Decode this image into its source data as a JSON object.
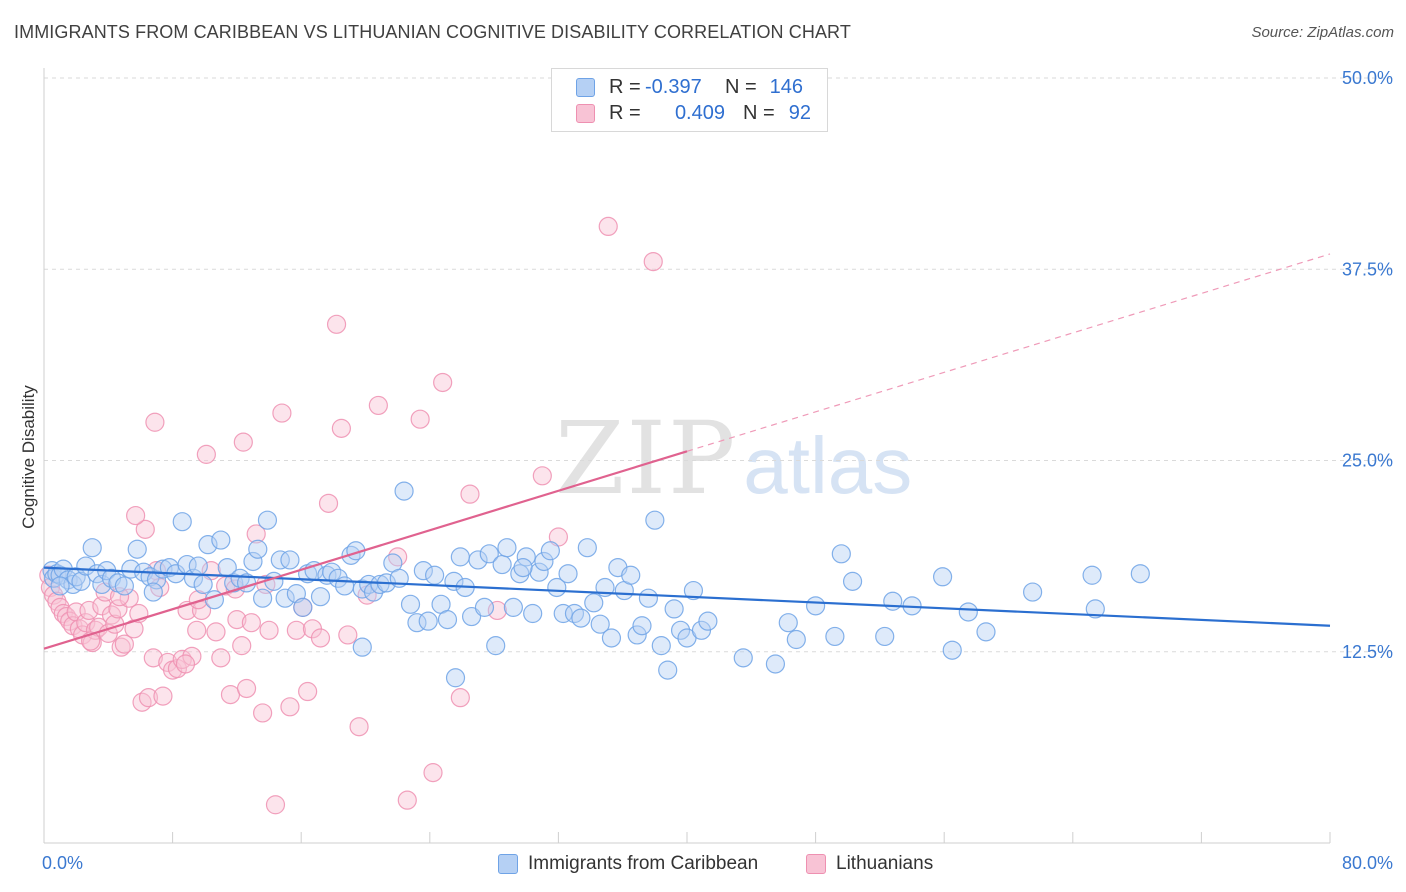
{
  "header": {
    "title": "IMMIGRANTS FROM CARIBBEAN VS LITHUANIAN COGNITIVE DISABILITY CORRELATION CHART",
    "source": "Source: ZipAtlas.com"
  },
  "watermark": {
    "zip": "ZIP",
    "atlas": "atlas"
  },
  "legend": {
    "rows": [
      {
        "r_label": "R =",
        "r_value": "-0.397",
        "n_label": "N =",
        "n_value": "146",
        "color": "#6fa3e6",
        "fill": "#b5d0f4"
      },
      {
        "r_label": "R =",
        "r_value": "0.409",
        "n_label": "N =",
        "n_value": "92",
        "color": "#ee90b1",
        "fill": "#f8c3d5"
      }
    ]
  },
  "bottom_legend": [
    {
      "label": "Immigrants from Caribbean",
      "color": "#6fa3e6",
      "fill": "#b5d0f4"
    },
    {
      "label": "Lithuanians",
      "color": "#ee90b1",
      "fill": "#f8c3d5"
    }
  ],
  "axes": {
    "ylabel": "Cognitive Disability",
    "x_min_label": "0.0%",
    "x_max_label": "80.0%",
    "y_ticks": [
      "12.5%",
      "25.0%",
      "37.5%",
      "50.0%"
    ]
  },
  "chart_data": {
    "type": "scatter",
    "title": "IMMIGRANTS FROM CARIBBEAN VS LITHUANIAN COGNITIVE DISABILITY CORRELATION CHART",
    "xlabel": "",
    "ylabel": "Cognitive Disability",
    "xlim": [
      0,
      80
    ],
    "ylim": [
      0,
      50
    ],
    "y_ticks": [
      12.5,
      25.0,
      37.5,
      50.0
    ],
    "x_tick_marks": [
      0,
      8,
      16,
      24,
      32,
      40,
      48,
      56,
      64,
      72,
      80
    ],
    "grid": "horizontal dashed",
    "legend_position": "top-center",
    "series": [
      {
        "name": "Immigrants from Caribbean",
        "color": "#4a86d8",
        "R": -0.397,
        "N": 146,
        "trend": {
          "x": [
            0,
            80
          ],
          "y": [
            18.0,
            14.2
          ],
          "style": "solid"
        },
        "points": [
          [
            0.5,
            17.8
          ],
          [
            0.6,
            17.3
          ],
          [
            0.8,
            17.6
          ],
          [
            1.0,
            17.5
          ],
          [
            1.2,
            17.9
          ],
          [
            1.5,
            17.2
          ],
          [
            1.8,
            16.9
          ],
          [
            2.0,
            17.4
          ],
          [
            2.3,
            17.1
          ],
          [
            2.6,
            18.1
          ],
          [
            3.0,
            19.3
          ],
          [
            3.3,
            17.6
          ],
          [
            3.6,
            16.9
          ],
          [
            3.9,
            17.8
          ],
          [
            4.2,
            17.3
          ],
          [
            4.6,
            17.0
          ],
          [
            5.0,
            16.8
          ],
          [
            5.4,
            17.9
          ],
          [
            5.8,
            19.2
          ],
          [
            6.2,
            17.7
          ],
          [
            6.6,
            17.4
          ],
          [
            7.0,
            17.2
          ],
          [
            7.4,
            17.9
          ],
          [
            7.8,
            18.0
          ],
          [
            8.2,
            17.6
          ],
          [
            8.6,
            21.0
          ],
          [
            8.9,
            18.2
          ],
          [
            9.3,
            17.3
          ],
          [
            9.6,
            18.1
          ],
          [
            9.9,
            16.9
          ],
          [
            10.2,
            19.5
          ],
          [
            10.6,
            15.9
          ],
          [
            11.0,
            19.8
          ],
          [
            11.4,
            18.0
          ],
          [
            11.8,
            17.0
          ],
          [
            12.2,
            17.3
          ],
          [
            12.6,
            17.0
          ],
          [
            13.0,
            18.4
          ],
          [
            13.3,
            19.2
          ],
          [
            13.6,
            16.0
          ],
          [
            13.9,
            21.1
          ],
          [
            14.3,
            17.1
          ],
          [
            14.7,
            18.5
          ],
          [
            15.0,
            16.0
          ],
          [
            15.3,
            18.5
          ],
          [
            15.7,
            16.3
          ],
          [
            16.1,
            15.4
          ],
          [
            16.4,
            17.6
          ],
          [
            16.8,
            17.8
          ],
          [
            17.2,
            16.1
          ],
          [
            17.6,
            17.5
          ],
          [
            17.9,
            17.7
          ],
          [
            18.3,
            17.3
          ],
          [
            18.7,
            16.8
          ],
          [
            19.1,
            18.8
          ],
          [
            19.4,
            19.1
          ],
          [
            19.8,
            16.6
          ],
          [
            20.2,
            16.9
          ],
          [
            20.5,
            16.4
          ],
          [
            20.9,
            16.9
          ],
          [
            21.3,
            17.0
          ],
          [
            21.7,
            18.3
          ],
          [
            22.1,
            17.3
          ],
          [
            22.4,
            23.0
          ],
          [
            22.8,
            15.6
          ],
          [
            23.2,
            14.4
          ],
          [
            23.6,
            17.8
          ],
          [
            23.9,
            14.5
          ],
          [
            24.3,
            17.5
          ],
          [
            24.7,
            15.6
          ],
          [
            25.1,
            14.6
          ],
          [
            25.5,
            17.1
          ],
          [
            25.9,
            18.7
          ],
          [
            26.2,
            16.7
          ],
          [
            26.6,
            14.8
          ],
          [
            27.0,
            18.5
          ],
          [
            27.4,
            15.4
          ],
          [
            27.7,
            18.9
          ],
          [
            28.1,
            12.9
          ],
          [
            28.5,
            18.2
          ],
          [
            28.8,
            19.3
          ],
          [
            29.2,
            15.4
          ],
          [
            29.6,
            17.6
          ],
          [
            30.0,
            18.7
          ],
          [
            30.4,
            15.0
          ],
          [
            30.8,
            17.7
          ],
          [
            31.1,
            18.4
          ],
          [
            31.5,
            19.1
          ],
          [
            31.9,
            16.7
          ],
          [
            32.3,
            15.0
          ],
          [
            32.6,
            17.6
          ],
          [
            33.0,
            15.0
          ],
          [
            33.4,
            14.7
          ],
          [
            33.8,
            19.3
          ],
          [
            34.2,
            15.7
          ],
          [
            34.6,
            14.3
          ],
          [
            34.9,
            16.7
          ],
          [
            35.3,
            13.4
          ],
          [
            35.7,
            18.0
          ],
          [
            36.1,
            16.5
          ],
          [
            36.5,
            17.5
          ],
          [
            36.9,
            13.6
          ],
          [
            37.2,
            14.2
          ],
          [
            37.6,
            16.0
          ],
          [
            38.0,
            21.1
          ],
          [
            38.4,
            12.9
          ],
          [
            38.8,
            11.3
          ],
          [
            39.2,
            15.3
          ],
          [
            39.6,
            13.9
          ],
          [
            40.0,
            13.4
          ],
          [
            40.4,
            16.5
          ],
          [
            40.9,
            13.9
          ],
          [
            41.3,
            14.5
          ],
          [
            43.5,
            12.1
          ],
          [
            45.5,
            11.7
          ],
          [
            46.3,
            14.4
          ],
          [
            46.8,
            13.3
          ],
          [
            48.0,
            15.5
          ],
          [
            49.2,
            13.5
          ],
          [
            50.3,
            17.1
          ],
          [
            49.6,
            18.9
          ],
          [
            52.3,
            13.5
          ],
          [
            52.8,
            15.8
          ],
          [
            54.0,
            15.5
          ],
          [
            55.9,
            17.4
          ],
          [
            56.5,
            12.6
          ],
          [
            57.5,
            15.1
          ],
          [
            58.6,
            13.8
          ],
          [
            61.5,
            16.4
          ],
          [
            65.2,
            17.5
          ],
          [
            65.4,
            15.3
          ],
          [
            68.2,
            17.6
          ],
          [
            1.0,
            16.8
          ],
          [
            6.8,
            16.4
          ],
          [
            19.8,
            12.8
          ],
          [
            29.8,
            18.0
          ],
          [
            25.6,
            10.8
          ]
        ]
      },
      {
        "name": "Lithuanians",
        "color": "#e7779f",
        "R": 0.409,
        "N": 92,
        "trend": {
          "x": [
            0,
            40
          ],
          "y": [
            12.7,
            25.6
          ],
          "style": "solid",
          "extended_to": [
            80,
            38.5
          ],
          "extended_style": "dashed"
        },
        "points": [
          [
            0.3,
            17.5
          ],
          [
            0.4,
            16.7
          ],
          [
            0.6,
            16.2
          ],
          [
            0.8,
            15.8
          ],
          [
            1.0,
            15.4
          ],
          [
            1.2,
            15.0
          ],
          [
            1.4,
            14.8
          ],
          [
            1.6,
            14.5
          ],
          [
            1.8,
            14.2
          ],
          [
            2.0,
            15.1
          ],
          [
            2.2,
            14.0
          ],
          [
            2.4,
            13.6
          ],
          [
            2.6,
            14.4
          ],
          [
            2.8,
            15.2
          ],
          [
            3.0,
            13.1
          ],
          [
            3.2,
            13.9
          ],
          [
            3.4,
            14.1
          ],
          [
            3.6,
            15.5
          ],
          [
            3.8,
            16.4
          ],
          [
            4.0,
            13.7
          ],
          [
            4.2,
            14.9
          ],
          [
            4.4,
            14.3
          ],
          [
            4.6,
            15.3
          ],
          [
            4.8,
            12.8
          ],
          [
            5.0,
            13.0
          ],
          [
            5.3,
            16.0
          ],
          [
            5.6,
            14.0
          ],
          [
            5.9,
            15.0
          ],
          [
            6.1,
            9.2
          ],
          [
            6.3,
            20.5
          ],
          [
            6.5,
            9.5
          ],
          [
            6.8,
            12.1
          ],
          [
            7.0,
            17.8
          ],
          [
            7.2,
            16.7
          ],
          [
            7.4,
            9.6
          ],
          [
            7.7,
            11.8
          ],
          [
            8.0,
            11.3
          ],
          [
            8.3,
            11.4
          ],
          [
            8.6,
            12.0
          ],
          [
            8.9,
            15.2
          ],
          [
            9.2,
            12.2
          ],
          [
            9.5,
            13.9
          ],
          [
            9.8,
            15.2
          ],
          [
            10.1,
            25.4
          ],
          [
            10.4,
            17.8
          ],
          [
            10.7,
            13.8
          ],
          [
            11.0,
            12.1
          ],
          [
            11.3,
            16.8
          ],
          [
            11.6,
            9.7
          ],
          [
            12.0,
            14.6
          ],
          [
            12.3,
            12.9
          ],
          [
            12.6,
            10.1
          ],
          [
            12.9,
            14.4
          ],
          [
            13.2,
            20.2
          ],
          [
            13.6,
            8.5
          ],
          [
            14.0,
            13.9
          ],
          [
            14.4,
            2.5
          ],
          [
            14.8,
            28.1
          ],
          [
            15.3,
            8.9
          ],
          [
            15.7,
            13.9
          ],
          [
            16.1,
            15.4
          ],
          [
            16.7,
            14.0
          ],
          [
            17.2,
            13.4
          ],
          [
            17.7,
            22.2
          ],
          [
            18.2,
            33.9
          ],
          [
            18.5,
            27.1
          ],
          [
            18.9,
            13.6
          ],
          [
            19.6,
            7.6
          ],
          [
            20.8,
            28.6
          ],
          [
            22.0,
            18.7
          ],
          [
            22.6,
            2.8
          ],
          [
            23.4,
            27.7
          ],
          [
            24.2,
            4.6
          ],
          [
            24.8,
            30.1
          ],
          [
            25.9,
            9.5
          ],
          [
            26.5,
            22.8
          ],
          [
            28.2,
            15.2
          ],
          [
            31.0,
            24.0
          ],
          [
            32.0,
            20.0
          ],
          [
            35.1,
            40.3
          ],
          [
            37.9,
            38.0
          ],
          [
            8.8,
            11.7
          ],
          [
            11.9,
            16.6
          ],
          [
            13.8,
            16.9
          ],
          [
            16.4,
            9.9
          ],
          [
            20.1,
            16.2
          ],
          [
            2.9,
            13.2
          ],
          [
            4.7,
            16.1
          ],
          [
            9.6,
            15.9
          ],
          [
            5.7,
            21.4
          ],
          [
            6.9,
            27.5
          ],
          [
            12.4,
            26.2
          ]
        ]
      }
    ]
  }
}
